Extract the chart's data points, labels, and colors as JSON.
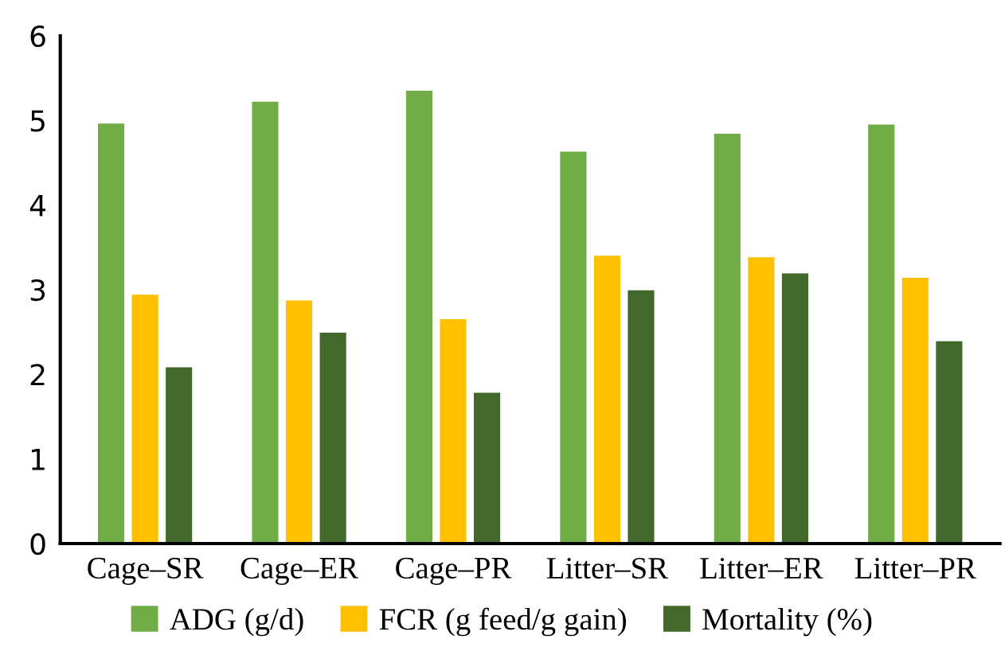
{
  "chart_data": {
    "type": "bar",
    "categories": [
      "Cage–SR",
      "Cage–ER",
      "Cage–PR",
      "Litter–SR",
      "Litter–ER",
      "Litter–PR"
    ],
    "series": [
      {
        "name": "ADG (g/d)",
        "color": "#70ad47",
        "values": [
          4.97,
          5.23,
          5.36,
          4.64,
          4.85,
          4.96
        ]
      },
      {
        "name": "FCR (g feed/g gain)",
        "color": "#ffc000",
        "values": [
          2.95,
          2.88,
          2.66,
          3.41,
          3.39,
          3.15
        ]
      },
      {
        "name": "Mortality (%)",
        "color": "#43682b",
        "values": [
          2.09,
          2.5,
          1.79,
          3.0,
          3.2,
          2.4
        ]
      }
    ],
    "ylim": [
      0,
      6
    ],
    "yticks": [
      0,
      1,
      2,
      3,
      4,
      5,
      6
    ],
    "grid": false,
    "legend": "bottom"
  }
}
